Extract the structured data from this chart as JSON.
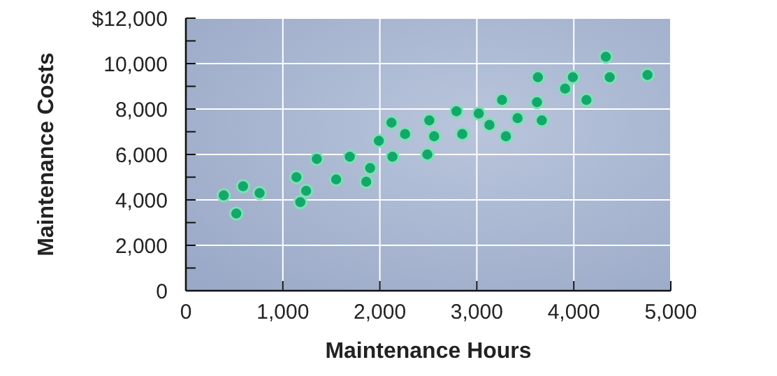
{
  "chart_data": {
    "type": "scatter",
    "xlabel": "Maintenance Hours",
    "ylabel": "Maintenance Costs",
    "x": [
      390,
      520,
      590,
      760,
      1140,
      1180,
      1240,
      1350,
      1550,
      1690,
      1860,
      1900,
      1990,
      2120,
      2130,
      2260,
      2490,
      2510,
      2560,
      2790,
      2850,
      3020,
      3130,
      3260,
      3300,
      3420,
      3630,
      3620,
      3670,
      3910,
      3990,
      4130,
      4330,
      4370,
      4760
    ],
    "series": [
      {
        "color": "#12a86c",
        "values": [
          4200,
          3400,
          4600,
          4300,
          5000,
          3900,
          4400,
          5800,
          4900,
          5900,
          4800,
          5400,
          6600,
          7400,
          5900,
          6900,
          6000,
          7500,
          6800,
          7900,
          6900,
          7800,
          7300,
          8400,
          6800,
          7600,
          9400,
          8300,
          7500,
          8900,
          9400,
          8400,
          10300,
          9400,
          9500
        ]
      }
    ],
    "xlim": [
      0,
      5000
    ],
    "ylim": [
      0,
      12000
    ],
    "xticks": [
      {
        "value": 0,
        "label": "0"
      },
      {
        "value": 1000,
        "label": "1,000"
      },
      {
        "value": 2000,
        "label": "2,000"
      },
      {
        "value": 3000,
        "label": "3,000"
      },
      {
        "value": 4000,
        "label": "4,000"
      },
      {
        "value": 5000,
        "label": "5,000"
      }
    ],
    "yticks": [
      {
        "value": 0,
        "label": "0"
      },
      {
        "value": 1000,
        "label": null
      },
      {
        "value": 2000,
        "label": "2,000"
      },
      {
        "value": 3000,
        "label": null
      },
      {
        "value": 4000,
        "label": "4,000"
      },
      {
        "value": 5000,
        "label": null
      },
      {
        "value": 6000,
        "label": "6,000"
      },
      {
        "value": 7000,
        "label": null
      },
      {
        "value": 8000,
        "label": "8,000"
      },
      {
        "value": 9000,
        "label": null
      },
      {
        "value": 10000,
        "label": "10,000"
      },
      {
        "value": 11000,
        "label": null
      },
      {
        "value": 12000,
        "label": "$12,000"
      }
    ],
    "grid": true,
    "marker": "circle"
  }
}
